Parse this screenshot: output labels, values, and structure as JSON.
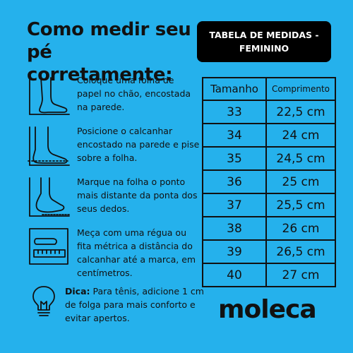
{
  "header": {
    "title_line1": "Como medir seu",
    "title_line2": "pé corretamente:",
    "badge_line1": "TABELA DE MEDIDAS -",
    "badge_line2": "FEMININO"
  },
  "steps": [
    {
      "icon": "foot-against-wall-icon",
      "text": "Coloque uma folha de papel no chão, encostada na parede."
    },
    {
      "icon": "heel-on-paper-icon",
      "text": "Posicione o calcanhar encostado na parede e pise sobre a folha."
    },
    {
      "icon": "mark-toe-point-icon",
      "text": "Marque na folha o ponto mais distante da ponta dos seus dedos."
    },
    {
      "icon": "ruler-measure-icon",
      "text": "Meça com uma régua ou fita métrica a distância do calcanhar até a marca, em centímetros."
    }
  ],
  "tip": {
    "icon": "lightbulb-icon",
    "label": "Dica:",
    "text": "Para tênis, adicione 1 cm de folga para mais conforto e evitar apertos."
  },
  "table": {
    "headers": [
      "Tamanho",
      "Comprimento"
    ],
    "rows": [
      [
        "33",
        "22,5 cm"
      ],
      [
        "34",
        "24 cm"
      ],
      [
        "35",
        "24,5 cm"
      ],
      [
        "36",
        "25 cm"
      ],
      [
        "37",
        "25,5 cm"
      ],
      [
        "38",
        "26 cm"
      ],
      [
        "39",
        "26,5 cm"
      ],
      [
        "40",
        "27 cm"
      ]
    ]
  },
  "brand": "moleca",
  "colors": {
    "background": "#25b1ec",
    "badge": "#000000",
    "text": "#111111"
  }
}
